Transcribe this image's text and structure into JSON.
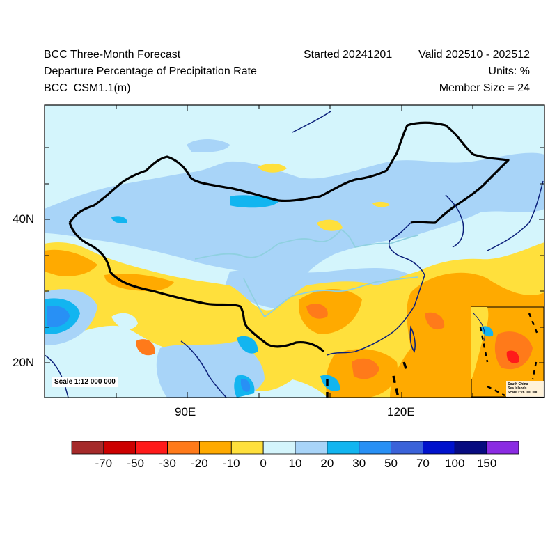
{
  "header": {
    "title": "BCC Three-Month Forecast",
    "subtitle": "Departure Percentage of Precipitation Rate",
    "model": "BCC_CSM1.1(m)",
    "started": "Started 20241201",
    "valid": "Valid 202510 - 202512",
    "units": "Units: %",
    "member_size": "Member Size = 24"
  },
  "map": {
    "lat_labels": [
      "40N",
      "20N"
    ],
    "lon_labels": [
      "90E",
      "120E"
    ],
    "scale_text": "Scale 1:12 000 000",
    "inset": {
      "title_line1": "South China",
      "title_line2": "Sea Islands",
      "scale_line": "Scale 1:28 000 000"
    }
  },
  "colorbar": {
    "labels": [
      "-70",
      "-50",
      "-30",
      "-20",
      "-10",
      "0",
      "10",
      "20",
      "30",
      "50",
      "70",
      "100",
      "150"
    ],
    "colors": [
      "#a52a2a",
      "#cc0000",
      "#ff1a1a",
      "#ff7a1a",
      "#ffaa00",
      "#ffe03c",
      "#d4f5fc",
      "#a8d4f8",
      "#12b5f0",
      "#2890f5",
      "#3a62d9",
      "#0012cc",
      "#070b80",
      "#8a2be2"
    ]
  },
  "palette": {
    "ocean": "#d4f5fc",
    "border": "#000000",
    "coast": "#0a1f7a",
    "river": "#8fd0e0"
  }
}
